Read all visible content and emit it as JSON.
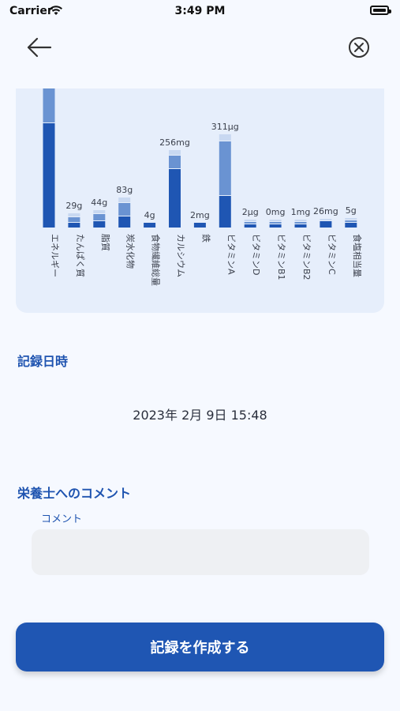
{
  "status_bar": {
    "carrier": "Carrier",
    "time": "3:49 PM"
  },
  "nav": {
    "back_icon": "arrow-left-icon",
    "close_icon": "close-circle-icon"
  },
  "colors": {
    "primary": "#1f56b3",
    "chart_mid": "#6a93d2",
    "chart_light": "#c8d8f1",
    "card_bg": "#e6eefb"
  },
  "chart_data": {
    "type": "bar",
    "stacked": true,
    "categories": [
      "エネルギー",
      "たんぱく質",
      "脂質",
      "炭水化物",
      "食物繊維総量",
      "カルシウム",
      "鉄",
      "ビタミンA",
      "ビタミンD",
      "ビタミンB1",
      "ビタミンB2",
      "ビタミンC",
      "食塩相当量"
    ],
    "value_labels": [
      "",
      "29g",
      "44g",
      "83g",
      "4g",
      "256mg",
      "2mg",
      "311μg",
      "2μg",
      "0mg",
      "1mg",
      "26mg",
      "5g"
    ],
    "series": [
      {
        "values": [
          66,
          3,
          4,
          7,
          3,
          37,
          3,
          20,
          2,
          2,
          2,
          4,
          3
        ]
      },
      {
        "values": [
          35,
          3,
          4,
          8,
          0,
          8,
          0,
          34,
          1,
          1,
          1,
          0,
          1
        ]
      },
      {
        "values": [
          0,
          2,
          2,
          3,
          0,
          3,
          0,
          4,
          1,
          1,
          1,
          1,
          1
        ]
      }
    ]
  },
  "record_date": {
    "title": "記録日時",
    "value": "2023年 2月 9日 15:48"
  },
  "comment_section": {
    "title": "栄養士へのコメント",
    "label": "コメント",
    "value": ""
  },
  "submit": {
    "label": "記録を作成する"
  }
}
